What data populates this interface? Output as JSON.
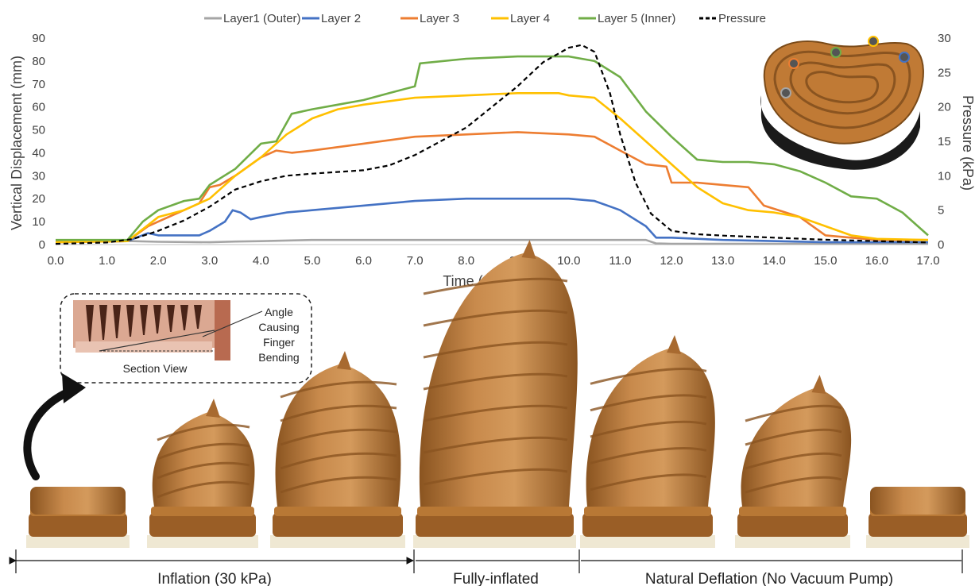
{
  "chart_data": {
    "type": "line",
    "xlabel": "Time (seconds)",
    "ylabel": "Vertical Displacement (mm)",
    "y2label": "Pressure (kPa)",
    "xlim": [
      0,
      17
    ],
    "ylim": [
      0,
      90
    ],
    "y2lim": [
      0,
      30
    ],
    "xticks": [
      "0.0",
      "1.0",
      "2.0",
      "3.0",
      "4.0",
      "5.0",
      "6.0",
      "7.0",
      "8.0",
      "9.0",
      "10.0",
      "11.0",
      "12.0",
      "13.0",
      "14.0",
      "15.0",
      "16.0",
      "17.0"
    ],
    "yticks": [
      "0",
      "10",
      "20",
      "30",
      "40",
      "50",
      "60",
      "70",
      "80",
      "90"
    ],
    "y2ticks": [
      "0",
      "5",
      "10",
      "15",
      "20",
      "25",
      "30"
    ],
    "grid": false,
    "legend_position": "top",
    "series": [
      {
        "name": "Layer1 (Outer)",
        "color": "#a5a5a5",
        "axis": "left",
        "dash": false,
        "points": [
          [
            0,
            1.5
          ],
          [
            1.5,
            1.5
          ],
          [
            2,
            1.2
          ],
          [
            3,
            1
          ],
          [
            3.5,
            1.3
          ],
          [
            4,
            1.5
          ],
          [
            5,
            2
          ],
          [
            7,
            2
          ],
          [
            10,
            2
          ],
          [
            11.5,
            2
          ],
          [
            11.7,
            0.5
          ],
          [
            12,
            0.3
          ],
          [
            17,
            0.3
          ]
        ]
      },
      {
        "name": "Layer 2",
        "color": "#4472c4",
        "axis": "left",
        "dash": false,
        "points": [
          [
            0,
            1
          ],
          [
            1.4,
            1.5
          ],
          [
            1.8,
            5
          ],
          [
            2,
            4
          ],
          [
            2.8,
            4
          ],
          [
            3,
            6
          ],
          [
            3.3,
            10
          ],
          [
            3.45,
            15
          ],
          [
            3.6,
            14
          ],
          [
            3.8,
            11
          ],
          [
            4,
            12
          ],
          [
            4.5,
            14
          ],
          [
            5,
            15
          ],
          [
            6,
            17
          ],
          [
            7,
            19
          ],
          [
            8,
            20
          ],
          [
            9,
            20
          ],
          [
            10,
            20
          ],
          [
            10.5,
            19
          ],
          [
            11,
            15
          ],
          [
            11.5,
            8
          ],
          [
            11.7,
            3
          ],
          [
            12,
            3
          ],
          [
            13,
            2
          ],
          [
            15,
            1
          ],
          [
            17,
            1
          ]
        ]
      },
      {
        "name": "Layer 3",
        "color": "#ed7d31",
        "axis": "left",
        "dash": false,
        "points": [
          [
            0,
            1
          ],
          [
            1.4,
            1.5
          ],
          [
            1.8,
            8
          ],
          [
            2,
            10
          ],
          [
            2.5,
            15
          ],
          [
            2.8,
            18
          ],
          [
            3,
            25
          ],
          [
            3.2,
            26
          ],
          [
            3.5,
            30
          ],
          [
            4,
            38
          ],
          [
            4.3,
            41
          ],
          [
            4.6,
            40
          ],
          [
            5,
            41
          ],
          [
            6,
            44
          ],
          [
            7,
            47
          ],
          [
            8,
            48
          ],
          [
            9,
            49
          ],
          [
            10,
            48
          ],
          [
            10.5,
            47
          ],
          [
            11,
            41
          ],
          [
            11.5,
            35
          ],
          [
            11.9,
            34
          ],
          [
            12,
            27
          ],
          [
            12.5,
            27
          ],
          [
            13,
            26
          ],
          [
            13.5,
            25
          ],
          [
            13.8,
            17
          ],
          [
            14.5,
            12
          ],
          [
            15,
            4
          ],
          [
            15.5,
            3
          ],
          [
            16,
            2
          ],
          [
            17,
            2
          ]
        ]
      },
      {
        "name": "Layer 4",
        "color": "#ffc000",
        "axis": "left",
        "dash": false,
        "points": [
          [
            0,
            1
          ],
          [
            1.4,
            1.5
          ],
          [
            2,
            12
          ],
          [
            2.5,
            15
          ],
          [
            3,
            20
          ],
          [
            3.5,
            30
          ],
          [
            4,
            38
          ],
          [
            4.5,
            48
          ],
          [
            5,
            55
          ],
          [
            5.5,
            59
          ],
          [
            6,
            61
          ],
          [
            7,
            64
          ],
          [
            8,
            65
          ],
          [
            9,
            66
          ],
          [
            9.8,
            66
          ],
          [
            10,
            65
          ],
          [
            10.5,
            64
          ],
          [
            11,
            55
          ],
          [
            11.5,
            45
          ],
          [
            12,
            35
          ],
          [
            12.5,
            25
          ],
          [
            13,
            18
          ],
          [
            13.5,
            15
          ],
          [
            14,
            14
          ],
          [
            14.5,
            12
          ],
          [
            15,
            8
          ],
          [
            15.5,
            4
          ],
          [
            16,
            2.5
          ],
          [
            17,
            2
          ]
        ]
      },
      {
        "name": "Layer 5 (Inner)",
        "color": "#70ad47",
        "axis": "left",
        "dash": false,
        "points": [
          [
            0,
            2
          ],
          [
            1.4,
            2
          ],
          [
            1.7,
            10
          ],
          [
            2,
            15
          ],
          [
            2.5,
            19
          ],
          [
            2.8,
            20
          ],
          [
            3,
            26
          ],
          [
            3.5,
            33
          ],
          [
            4,
            44
          ],
          [
            4.3,
            45
          ],
          [
            4.6,
            57
          ],
          [
            5,
            59
          ],
          [
            5.5,
            61
          ],
          [
            6,
            63
          ],
          [
            6.5,
            66
          ],
          [
            7,
            69
          ],
          [
            7.1,
            79
          ],
          [
            8,
            81
          ],
          [
            9,
            82
          ],
          [
            10,
            82
          ],
          [
            10.5,
            80
          ],
          [
            11,
            73
          ],
          [
            11.5,
            58
          ],
          [
            12,
            47
          ],
          [
            12.5,
            37
          ],
          [
            13,
            36
          ],
          [
            13.5,
            36
          ],
          [
            14,
            35
          ],
          [
            14.5,
            32
          ],
          [
            15,
            27
          ],
          [
            15.5,
            21
          ],
          [
            16,
            20
          ],
          [
            16.5,
            14
          ],
          [
            17,
            4
          ]
        ]
      },
      {
        "name": "Pressure",
        "color": "#000000",
        "axis": "right",
        "dash": true,
        "points": [
          [
            0,
            0.1
          ],
          [
            1,
            0.3
          ],
          [
            1.5,
            0.8
          ],
          [
            2,
            2
          ],
          [
            2.5,
            3.5
          ],
          [
            3,
            5.5
          ],
          [
            3.5,
            8
          ],
          [
            4,
            9.2
          ],
          [
            4.5,
            10
          ],
          [
            5,
            10.3
          ],
          [
            6,
            10.8
          ],
          [
            6.5,
            11.5
          ],
          [
            7,
            13
          ],
          [
            7.5,
            15
          ],
          [
            8,
            17
          ],
          [
            8.5,
            20
          ],
          [
            9,
            23
          ],
          [
            9.5,
            26.5
          ],
          [
            10,
            28.6
          ],
          [
            10.25,
            29
          ],
          [
            10.5,
            28
          ],
          [
            10.8,
            22
          ],
          [
            11,
            16
          ],
          [
            11.3,
            9
          ],
          [
            11.6,
            4.5
          ],
          [
            12,
            2
          ],
          [
            12.5,
            1.5
          ],
          [
            13,
            1.3
          ],
          [
            14,
            1
          ],
          [
            15,
            0.7
          ],
          [
            16,
            0.5
          ],
          [
            17,
            0.3
          ]
        ]
      }
    ]
  },
  "phases": [
    {
      "label": "Inflation (30 kPa)"
    },
    {
      "label": "Fully-inflated"
    },
    {
      "label": "Natural Deflation (No Vacuum Pump)"
    }
  ],
  "inset": {
    "section_label": "Section View",
    "angle_lines": [
      "Angle",
      "Causing",
      "Finger",
      "Bending"
    ]
  },
  "colors": {
    "finger": "#b97a3c",
    "finger_dark": "#8a5420",
    "finger_light": "#d49a5c",
    "base": "#f0ead8"
  }
}
